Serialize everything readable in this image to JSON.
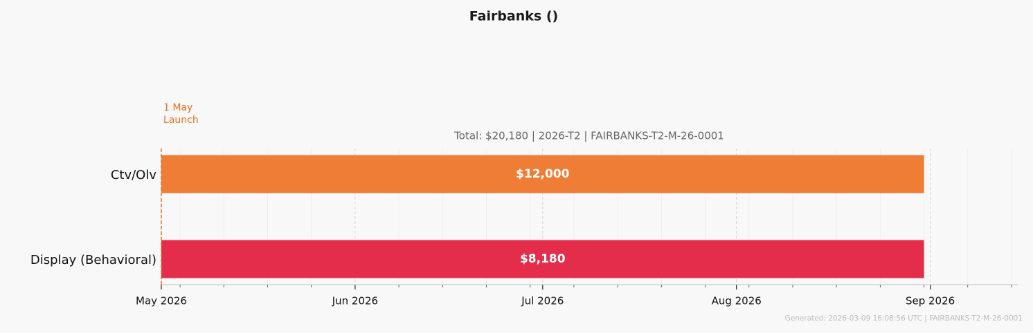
{
  "chart_data": {
    "type": "gantt",
    "title": "Fairbanks ()",
    "subtitle": "Total: $20,180  |  2026-T2  |  FAIRBANKS-T2-M-26-0001",
    "footer": "Generated: 2026-03-09 16:08:56 UTC  |  FAIRBANKS-T2-M-26-0001",
    "annotation": {
      "date": "2026-05-01",
      "lines": [
        "1 May",
        "Launch"
      ],
      "color": "#e8731f"
    },
    "categories": [
      "Ctv/Olv",
      "Display (Behavioral)"
    ],
    "start": [
      "2026-05-01",
      "2026-05-01"
    ],
    "end": [
      "2026-08-31",
      "2026-08-31"
    ],
    "values": [
      12000,
      8180
    ],
    "value_labels": [
      "$12,000",
      "$8,180"
    ],
    "colors": [
      "#f07d36",
      "#e32d4a"
    ],
    "xlim": [
      "2026-05-01",
      "2026-09-15"
    ],
    "xticks": [
      {
        "value": "2026-05-01",
        "label": "May 2026"
      },
      {
        "value": "2026-06-01",
        "label": "Jun 2026"
      },
      {
        "value": "2026-07-01",
        "label": "Jul 2026"
      },
      {
        "value": "2026-08-01",
        "label": "Aug 2026"
      },
      {
        "value": "2026-09-01",
        "label": "Sep 2026"
      }
    ],
    "xminorticks": [
      "2026-05-04",
      "2026-05-11",
      "2026-05-18",
      "2026-05-25",
      "2026-06-08",
      "2026-06-15",
      "2026-06-22",
      "2026-06-29",
      "2026-07-06",
      "2026-07-13",
      "2026-07-20",
      "2026-07-27",
      "2026-08-03",
      "2026-08-10",
      "2026-08-17",
      "2026-08-24",
      "2026-08-31",
      "2026-09-07",
      "2026-09-14"
    ],
    "grid": true
  }
}
